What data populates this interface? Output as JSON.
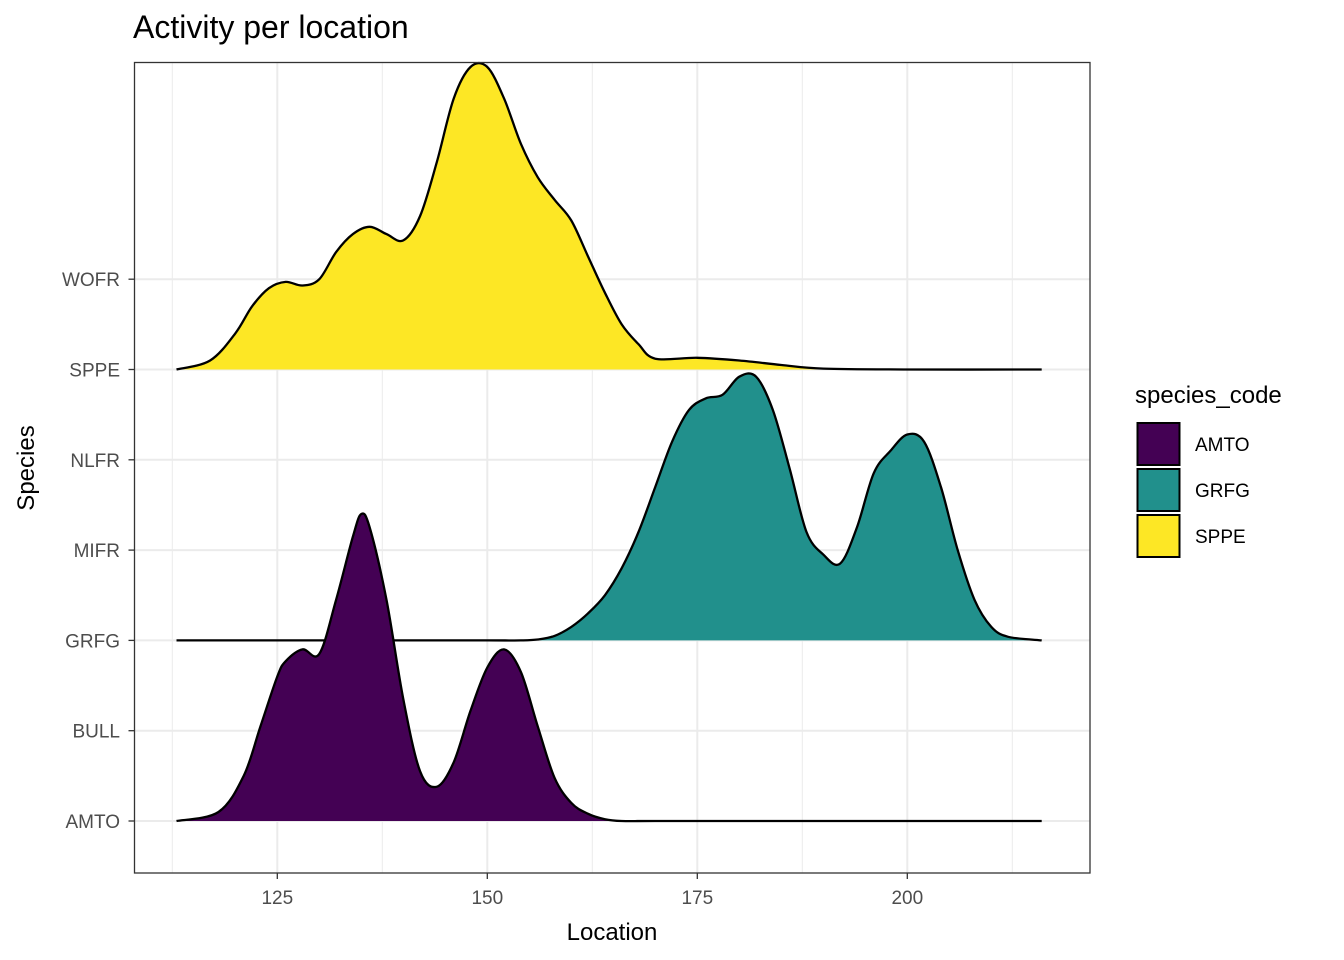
{
  "chart_data": {
    "type": "area",
    "subtype": "ridgeline",
    "title": "Activity per location",
    "xlabel": "Location",
    "ylabel": "Species",
    "xlim": [
      107.5,
      221
    ],
    "x_ticks": [
      125,
      150,
      175,
      200
    ],
    "y_categories": [
      "AMTO",
      "BULL",
      "GRFG",
      "MIFR",
      "NLFR",
      "SPPE",
      "WOFR"
    ],
    "grid": true,
    "legend": {
      "title": "species_code",
      "position": "right",
      "entries": [
        "AMTO",
        "GRFG",
        "SPPE"
      ]
    },
    "colors": {
      "AMTO": "#440154",
      "GRFG": "#21908C",
      "SPPE": "#FDE725",
      "outline": "#000000",
      "grid": "#ebebeb"
    },
    "series": [
      {
        "name": "AMTO",
        "baseline": "AMTO",
        "x": [
          113,
          118,
          121,
          123,
          125,
          126,
          128,
          130,
          132,
          134,
          135,
          136,
          138,
          140,
          142,
          144,
          146,
          148,
          150,
          152,
          154,
          156,
          158,
          160,
          162,
          164,
          166,
          170,
          180,
          190,
          200,
          210,
          216
        ],
        "height_rows": [
          0,
          0.1,
          0.5,
          1.05,
          1.6,
          1.77,
          1.9,
          1.85,
          2.45,
          3.15,
          3.4,
          3.25,
          2.45,
          1.35,
          0.55,
          0.38,
          0.65,
          1.22,
          1.7,
          1.9,
          1.65,
          1.05,
          0.48,
          0.2,
          0.08,
          0.02,
          0,
          0,
          0,
          0,
          0,
          0,
          0
        ]
      },
      {
        "name": "GRFG",
        "baseline": "GRFG",
        "x": [
          113,
          140,
          150,
          154,
          156,
          158,
          160,
          162,
          164,
          166,
          168,
          170,
          172,
          174,
          176,
          178,
          180,
          182,
          184,
          186,
          188,
          190,
          192,
          194,
          196,
          198,
          200,
          202,
          204,
          206,
          208,
          210,
          212,
          216
        ],
        "height_rows": [
          0,
          0,
          0,
          0,
          0.01,
          0.05,
          0.15,
          0.3,
          0.5,
          0.8,
          1.2,
          1.7,
          2.2,
          2.55,
          2.68,
          2.72,
          2.92,
          2.92,
          2.55,
          1.9,
          1.2,
          0.95,
          0.85,
          1.25,
          1.85,
          2.1,
          2.28,
          2.2,
          1.7,
          1.0,
          0.45,
          0.15,
          0.04,
          0
        ]
      },
      {
        "name": "SPPE",
        "baseline": "SPPE",
        "x": [
          113,
          117,
          120,
          122,
          124,
          126,
          128,
          130,
          132,
          134,
          136,
          138,
          140,
          142,
          144,
          146,
          148,
          150,
          152,
          154,
          156,
          158,
          160,
          162,
          164,
          166,
          168,
          170,
          175,
          180,
          185,
          190,
          200,
          216
        ],
        "height_rows": [
          0,
          0.1,
          0.4,
          0.7,
          0.9,
          0.97,
          0.93,
          1.0,
          1.3,
          1.5,
          1.58,
          1.5,
          1.43,
          1.7,
          2.3,
          3.0,
          3.35,
          3.35,
          3.0,
          2.5,
          2.13,
          1.88,
          1.65,
          1.25,
          0.85,
          0.5,
          0.28,
          0.12,
          0.13,
          0.1,
          0.05,
          0.01,
          0,
          0
        ]
      }
    ]
  }
}
